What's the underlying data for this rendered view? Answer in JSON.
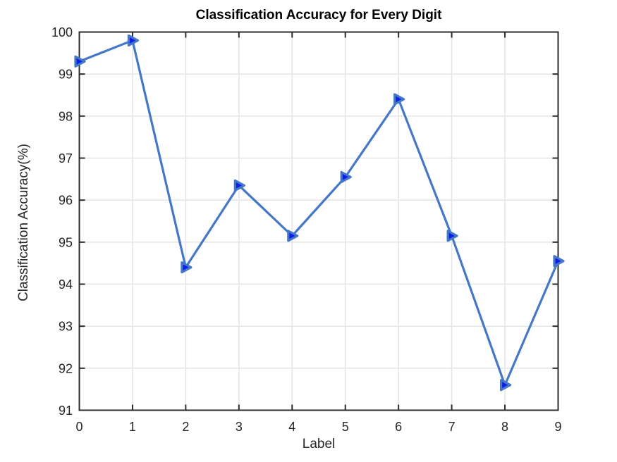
{
  "chart_data": {
    "type": "line",
    "title": "Classification Accuracy for Every Digit",
    "xlabel": "Label",
    "ylabel": "Classification Accuracy(%)",
    "x": [
      0,
      1,
      2,
      3,
      4,
      5,
      6,
      7,
      8,
      9
    ],
    "values": [
      99.3,
      99.8,
      94.4,
      96.35,
      95.15,
      96.55,
      98.4,
      95.15,
      91.6,
      94.55
    ],
    "xticks": [
      "0",
      "1",
      "2",
      "3",
      "4",
      "5",
      "6",
      "7",
      "8",
      "9"
    ],
    "yticks": [
      "91",
      "92",
      "93",
      "94",
      "95",
      "96",
      "97",
      "98",
      "99",
      "100"
    ],
    "xlim": [
      0,
      9
    ],
    "ylim": [
      91,
      100
    ],
    "grid": true,
    "legend": "none",
    "marker": "right-triangle",
    "colors": {
      "line": "#4477c8",
      "marker_face": "#0d1ee8",
      "grid": "#e6e6e6",
      "axis": "#2b2b2b",
      "tick_text": "#262626",
      "background": "#ffffff"
    }
  }
}
